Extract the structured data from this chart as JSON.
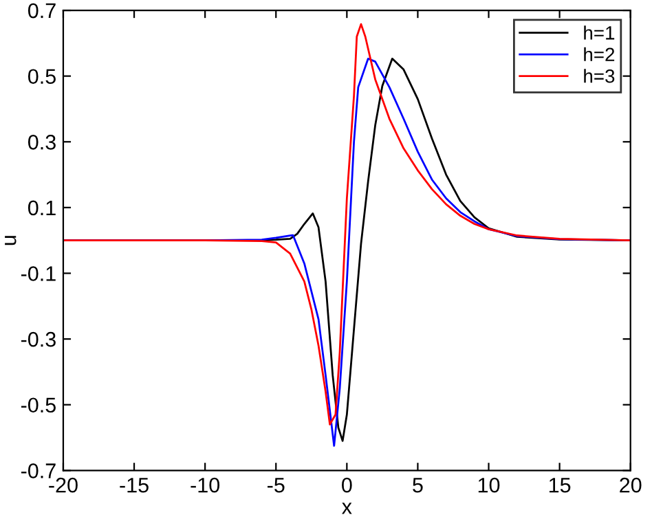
{
  "chart_data": {
    "type": "line",
    "xlabel": "x",
    "ylabel": "u",
    "xlim": [
      -20,
      20
    ],
    "ylim": [
      -0.7,
      0.7
    ],
    "xticks": [
      -20,
      -15,
      -10,
      -5,
      0,
      5,
      10,
      15,
      20
    ],
    "yticks": [
      -0.7,
      -0.5,
      -0.3,
      -0.1,
      0.1,
      0.3,
      0.5,
      0.7
    ],
    "grid": false,
    "legend": "top right",
    "line_style": "solid",
    "marker": "none",
    "series": [
      {
        "name": "h=1",
        "color": "#000000",
        "x": [
          -20,
          -10,
          -6,
          -5,
          -4,
          -3.5,
          -3,
          -2.4,
          -2,
          -1.5,
          -1,
          -0.6,
          -0.3,
          0,
          0.5,
          1,
          1.5,
          2,
          2.5,
          3.2,
          4,
          5,
          6,
          7,
          8,
          9,
          10,
          12,
          15,
          20
        ],
        "values": [
          0,
          0,
          0,
          0.002,
          0.005,
          0.02,
          0.05,
          0.082,
          0.04,
          -0.125,
          -0.41,
          -0.57,
          -0.61,
          -0.53,
          -0.27,
          -0.01,
          0.18,
          0.35,
          0.47,
          0.553,
          0.52,
          0.43,
          0.31,
          0.2,
          0.12,
          0.07,
          0.037,
          0.011,
          0.003,
          0
        ]
      },
      {
        "name": "h=2",
        "color": "#0000ff",
        "x": [
          -20,
          -10,
          -6,
          -5,
          -4,
          -3.8,
          -3,
          -2,
          -1.5,
          -0.9,
          -0.5,
          0,
          0.5,
          0.8,
          1.5,
          2,
          3,
          4,
          5,
          6,
          7,
          8,
          9,
          10,
          12,
          15,
          20
        ],
        "values": [
          0,
          0,
          0.002,
          0.008,
          0.015,
          0.016,
          -0.07,
          -0.24,
          -0.41,
          -0.625,
          -0.45,
          -0.125,
          0.3,
          0.466,
          0.553,
          0.544,
          0.466,
          0.37,
          0.27,
          0.185,
          0.128,
          0.086,
          0.058,
          0.034,
          0.013,
          0.004,
          0
        ]
      },
      {
        "name": "h=3",
        "color": "#ff0000",
        "x": [
          -20,
          -10,
          -6,
          -5,
          -4,
          -3,
          -2.5,
          -2,
          -1.5,
          -1.2,
          -0.8,
          -0.5,
          0,
          0.5,
          0.7,
          1,
          1.3,
          2,
          3,
          4,
          5,
          6,
          7,
          8,
          9,
          10,
          12,
          15,
          20
        ],
        "values": [
          0,
          0,
          -0.002,
          -0.006,
          -0.04,
          -0.125,
          -0.21,
          -0.32,
          -0.46,
          -0.56,
          -0.53,
          -0.34,
          0.128,
          0.44,
          0.62,
          0.658,
          0.62,
          0.49,
          0.37,
          0.28,
          0.213,
          0.156,
          0.11,
          0.075,
          0.05,
          0.034,
          0.015,
          0.005,
          0
        ]
      }
    ]
  }
}
